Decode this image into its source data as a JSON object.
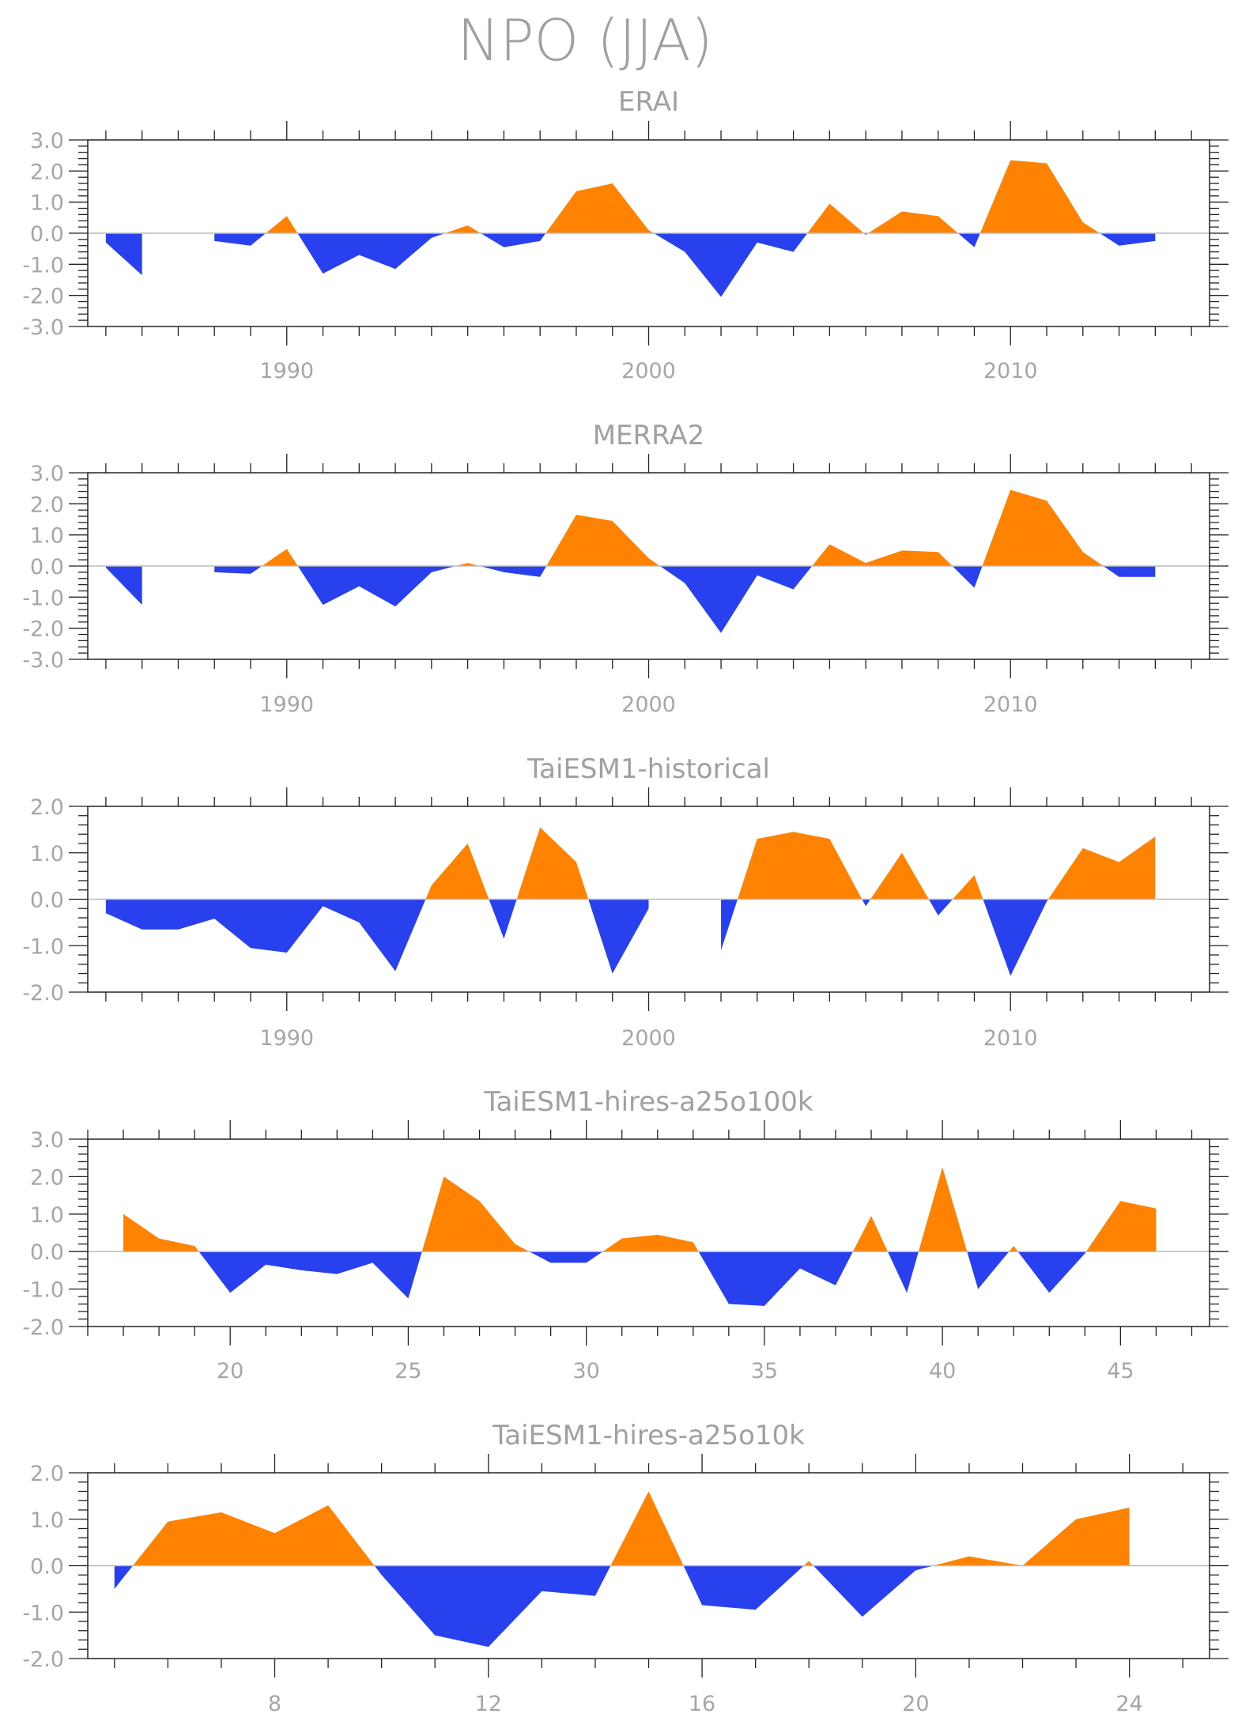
{
  "title": "NPO (JJA)",
  "colors": {
    "positive": "#ff8200",
    "negative": "#2840ee",
    "frame": "#222222",
    "text": "#a6a6a6"
  },
  "chart_data": [
    {
      "type": "area",
      "title": "ERAI",
      "x": [
        1985,
        1986,
        1987,
        1988,
        1989,
        1990,
        1991,
        1992,
        1993,
        1994,
        1995,
        1996,
        1997,
        1998,
        1999,
        2000,
        2001,
        2002,
        2003,
        2004,
        2005,
        2006,
        2007,
        2008,
        2009,
        2010,
        2011,
        2012,
        2013,
        2014
      ],
      "values": [
        -0.3,
        -1.35,
        0.0,
        -0.25,
        -0.4,
        0.55,
        -1.3,
        -0.7,
        -1.15,
        -0.15,
        0.25,
        -0.45,
        -0.25,
        1.35,
        1.6,
        0.1,
        -0.6,
        -2.05,
        -0.3,
        -0.6,
        0.95,
        -0.05,
        0.7,
        0.55,
        -0.45,
        2.35,
        2.25,
        0.35,
        -0.4,
        -0.25
      ],
      "xlim": [
        1984.5,
        2015.5
      ],
      "ylim": [
        -3.0,
        3.0
      ],
      "xticks": [
        1990,
        2000,
        2010
      ],
      "xtick_labels": [
        "1990",
        "2000",
        "2010"
      ],
      "yticks": [
        -3.0,
        -2.0,
        -1.0,
        0.0,
        1.0,
        2.0,
        3.0
      ],
      "ytick_labels": [
        "-3.0",
        "-2.0",
        "-1.0",
        "0.0",
        "1.0",
        "2.0",
        "3.0"
      ],
      "xminor": 1,
      "yminor": 0.2,
      "grid": false
    },
    {
      "type": "area",
      "title": "MERRA2",
      "x": [
        1985,
        1986,
        1987,
        1988,
        1989,
        1990,
        1991,
        1992,
        1993,
        1994,
        1995,
        1996,
        1997,
        1998,
        1999,
        2000,
        2001,
        2002,
        2003,
        2004,
        2005,
        2006,
        2007,
        2008,
        2009,
        2010,
        2011,
        2012,
        2013,
        2014
      ],
      "values": [
        -0.05,
        -1.25,
        0.0,
        -0.2,
        -0.25,
        0.55,
        -1.25,
        -0.65,
        -1.3,
        -0.2,
        0.1,
        -0.2,
        -0.35,
        1.65,
        1.45,
        0.25,
        -0.55,
        -2.15,
        -0.3,
        -0.75,
        0.7,
        0.1,
        0.5,
        0.45,
        -0.7,
        2.45,
        2.1,
        0.45,
        -0.35,
        -0.35
      ],
      "xlim": [
        1984.5,
        2015.5
      ],
      "ylim": [
        -3.0,
        3.0
      ],
      "xticks": [
        1990,
        2000,
        2010
      ],
      "xtick_labels": [
        "1990",
        "2000",
        "2010"
      ],
      "yticks": [
        -3.0,
        -2.0,
        -1.0,
        0.0,
        1.0,
        2.0,
        3.0
      ],
      "ytick_labels": [
        "-3.0",
        "-2.0",
        "-1.0",
        "0.0",
        "1.0",
        "2.0",
        "3.0"
      ],
      "xminor": 1,
      "yminor": 0.2,
      "grid": false
    },
    {
      "type": "area",
      "title": "TaiESM1-historical",
      "x": [
        1985,
        1986,
        1987,
        1988,
        1989,
        1990,
        1991,
        1992,
        1993,
        1994,
        1995,
        1996,
        1997,
        1998,
        1999,
        2000,
        2001,
        2002,
        2003,
        2004,
        2005,
        2006,
        2007,
        2008,
        2009,
        2010,
        2011,
        2012,
        2013,
        2014
      ],
      "values": [
        -0.3,
        -0.65,
        -0.65,
        -0.42,
        -1.05,
        -1.15,
        -0.15,
        -0.5,
        -1.55,
        0.3,
        1.2,
        -0.85,
        1.55,
        0.8,
        -1.6,
        -0.2,
        0.0,
        -1.1,
        1.3,
        1.45,
        1.3,
        -0.15,
        1.0,
        -0.35,
        0.52,
        -1.65,
        -0.05,
        1.1,
        0.8,
        1.35
      ],
      "xlim": [
        1984.5,
        2015.5
      ],
      "ylim": [
        -2.0,
        2.0
      ],
      "xticks": [
        1990,
        2000,
        2010
      ],
      "xtick_labels": [
        "1990",
        "2000",
        "2010"
      ],
      "yticks": [
        -2.0,
        -1.0,
        0.0,
        1.0,
        2.0
      ],
      "ytick_labels": [
        "-2.0",
        "-1.0",
        "0.0",
        "1.0",
        "2.0"
      ],
      "xminor": 1,
      "yminor": 0.2,
      "grid": false
    },
    {
      "type": "area",
      "title": "TaiESM1-hires-a25o100k",
      "x": [
        17,
        18,
        19,
        20,
        21,
        22,
        23,
        24,
        25,
        26,
        27,
        28,
        29,
        30,
        31,
        32,
        33,
        34,
        35,
        36,
        37,
        38,
        39,
        40,
        41,
        42,
        43,
        44,
        45,
        46
      ],
      "values": [
        1.0,
        0.35,
        0.15,
        -1.1,
        -0.35,
        -0.5,
        -0.6,
        -0.3,
        -1.25,
        2.0,
        1.35,
        0.2,
        -0.3,
        -0.3,
        0.35,
        0.45,
        0.25,
        -1.4,
        -1.45,
        -0.45,
        -0.9,
        0.95,
        -1.1,
        2.25,
        -1.0,
        0.15,
        -1.1,
        -0.05,
        1.35,
        1.15
      ],
      "xlim": [
        16.0,
        47.5
      ],
      "ylim": [
        -2.0,
        3.0
      ],
      "xticks": [
        20,
        25,
        30,
        35,
        40,
        45
      ],
      "xtick_labels": [
        "20",
        "25",
        "30",
        "35",
        "40",
        "45"
      ],
      "yticks": [
        -2.0,
        -1.0,
        0.0,
        1.0,
        2.0,
        3.0
      ],
      "ytick_labels": [
        "-2.0",
        "-1.0",
        "0.0",
        "1.0",
        "2.0",
        "3.0"
      ],
      "xminor": 1,
      "yminor": 0.2,
      "grid": false
    },
    {
      "type": "area",
      "title": "TaiESM1-hires-a25o10k",
      "x": [
        5,
        6,
        7,
        8,
        9,
        10,
        11,
        12,
        13,
        14,
        15,
        16,
        17,
        18,
        19,
        20,
        21,
        22,
        23,
        24
      ],
      "values": [
        -0.5,
        0.95,
        1.15,
        0.7,
        1.3,
        -0.2,
        -1.5,
        -1.75,
        -0.55,
        -0.65,
        1.6,
        -0.85,
        -0.95,
        0.1,
        -1.1,
        -0.1,
        0.2,
        0.0,
        1.0,
        1.25
      ],
      "xlim": [
        4.5,
        25.5
      ],
      "ylim": [
        -2.0,
        2.0
      ],
      "xticks": [
        8,
        12,
        16,
        20,
        24
      ],
      "xtick_labels": [
        "8",
        "12",
        "16",
        "20",
        "24"
      ],
      "yticks": [
        -2.0,
        -1.0,
        0.0,
        1.0,
        2.0
      ],
      "ytick_labels": [
        "-2.0",
        "-1.0",
        "0.0",
        "1.0",
        "2.0"
      ],
      "xminor": 1,
      "yminor": 0.2,
      "grid": false
    }
  ]
}
